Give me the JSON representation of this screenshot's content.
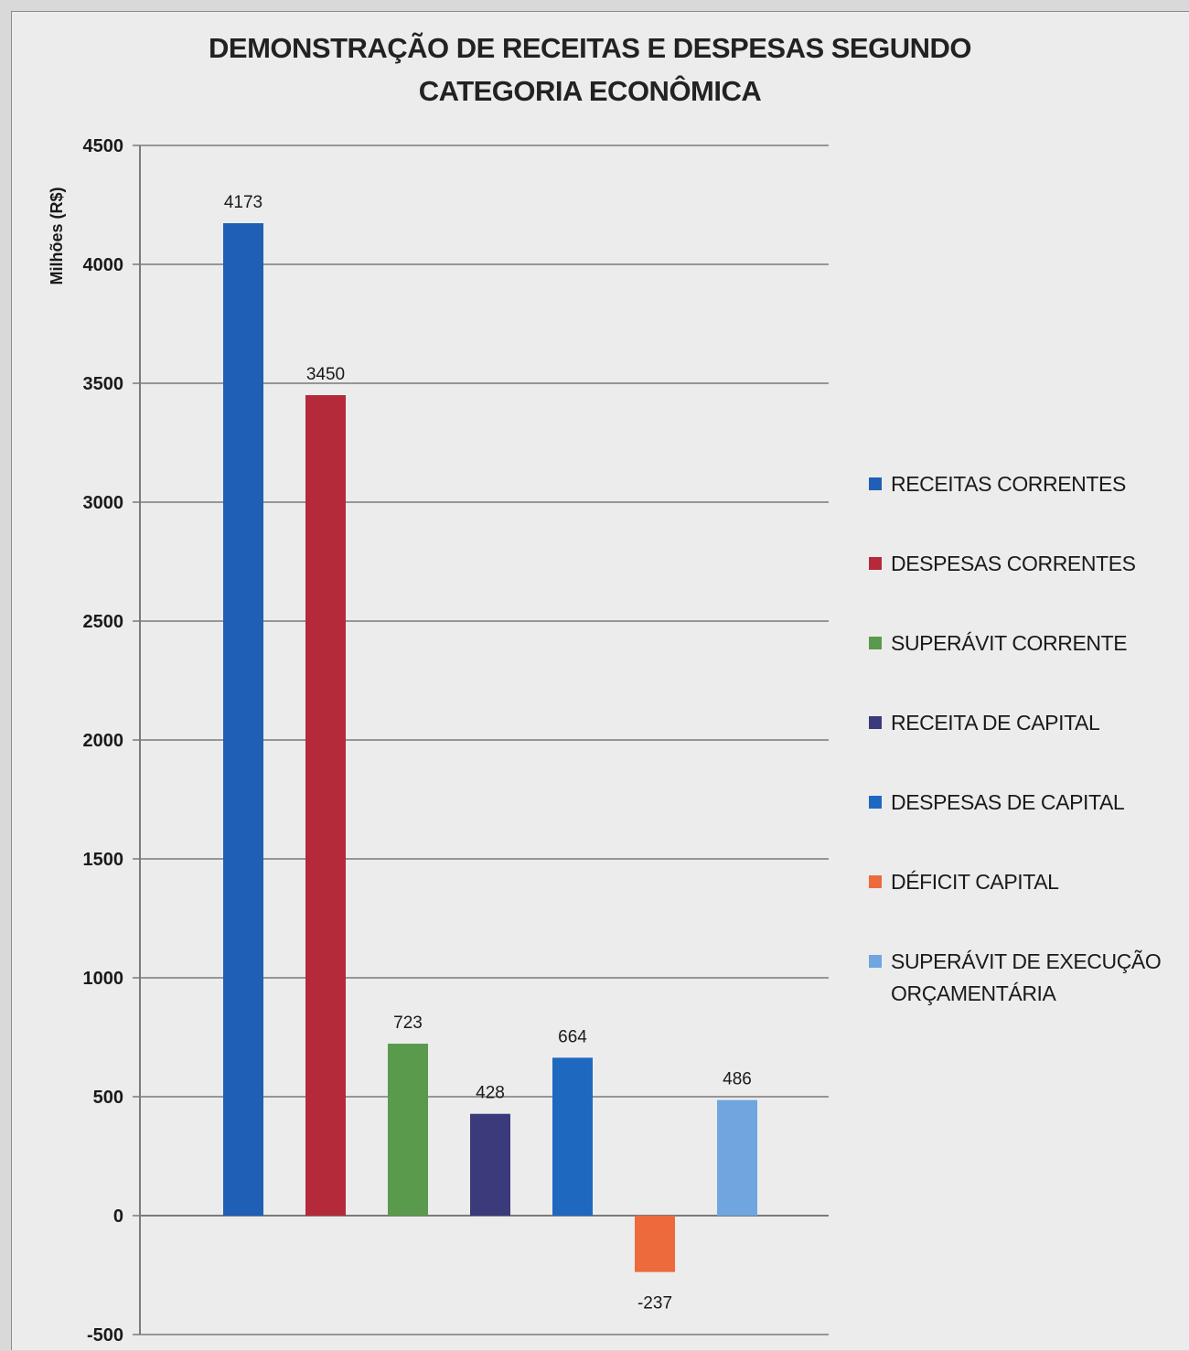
{
  "chart_data": {
    "type": "bar",
    "title": "DEMONSTRAÇÃO DE RECEITAS E DESPESAS SEGUNDO CATEGORIA ECONÔMICA",
    "title_lines": [
      "DEMONSTRAÇÃO DE RECEITAS E DESPESAS SEGUNDO",
      "CATEGORIA ECONÔMICA"
    ],
    "ylabel": "Milhões  (R$)",
    "xlabel": "",
    "ylim": [
      -500,
      4500
    ],
    "yticks": [
      4500,
      4000,
      3500,
      3000,
      2500,
      2000,
      1500,
      1000,
      500,
      0,
      -500
    ],
    "grid": true,
    "legend_position": "right",
    "series": [
      {
        "name": "RECEITAS CORRENTES",
        "legend_lines": [
          "RECEITAS CORRENTES"
        ],
        "value": 4173,
        "label": "4173",
        "color": "#1f5fb5"
      },
      {
        "name": "DESPESAS CORRENTES",
        "legend_lines": [
          "DESPESAS CORRENTES"
        ],
        "value": 3450,
        "label": "3450",
        "color": "#b52a3a"
      },
      {
        "name": "SUPERÁVIT CORRENTE",
        "legend_lines": [
          "SUPERÁVIT CORRENTE"
        ],
        "value": 723,
        "label": "723",
        "color": "#5a9a4c"
      },
      {
        "name": "RECEITA DE CAPITAL",
        "legend_lines": [
          "RECEITA DE CAPITAL"
        ],
        "value": 428,
        "label": "428",
        "color": "#3b3a7a"
      },
      {
        "name": "DESPESAS DE CAPITAL",
        "legend_lines": [
          "DESPESAS DE CAPITAL"
        ],
        "value": 664,
        "label": "664",
        "color": "#1f68c0"
      },
      {
        "name": "DÉFICIT CAPITAL",
        "legend_lines": [
          "DÉFICIT CAPITAL"
        ],
        "value": -237,
        "label": "-237",
        "color": "#ec6a3c"
      },
      {
        "name": "SUPERÁVIT DE EXECUÇÃO ORÇAMENTÁRIA",
        "legend_lines": [
          "SUPERÁVIT DE EXECUÇÃO",
          "ORÇAMENTÁRIA"
        ],
        "value": 486,
        "label": "486",
        "color": "#6fa6e0"
      }
    ]
  }
}
